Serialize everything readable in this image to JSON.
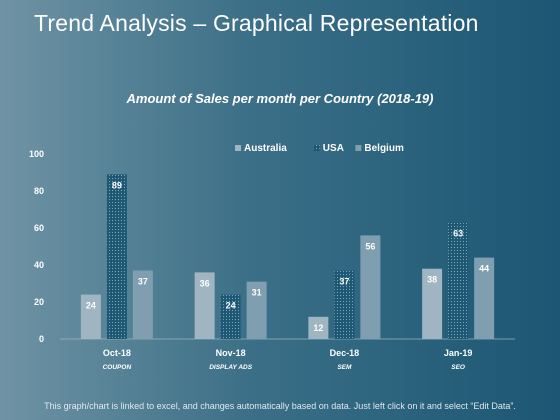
{
  "slide": {
    "title": "Trend Analysis – Graphical Representation",
    "footer": "This graph/chart is linked to excel, and changes automatically based on data. Just left click on it and select “Edit Data”."
  },
  "chart_data": {
    "type": "bar",
    "title": "Amount of Sales per month per Country (2018-19)",
    "categories": [
      "Oct-18",
      "Nov-18",
      "Dec-18",
      "Jan-19"
    ],
    "subcategories": [
      "COUPON",
      "DISPLAY ADS",
      "SEM",
      "SEO"
    ],
    "ylim": [
      0,
      100
    ],
    "yticks": [
      0,
      20,
      40,
      60,
      80,
      100
    ],
    "grid": false,
    "legend_position": "top-center",
    "series": [
      {
        "name": "Australia",
        "values": [
          24,
          36,
          12,
          38
        ],
        "color": "#9fb6c2",
        "pattern": "solid"
      },
      {
        "name": "USA",
        "values": [
          89,
          24,
          37,
          63
        ],
        "color": "#1d5772",
        "pattern": "dotted"
      },
      {
        "name": "Belgium",
        "values": [
          37,
          31,
          56,
          44
        ],
        "color": "#7f9fb0",
        "pattern": "solid"
      }
    ]
  }
}
